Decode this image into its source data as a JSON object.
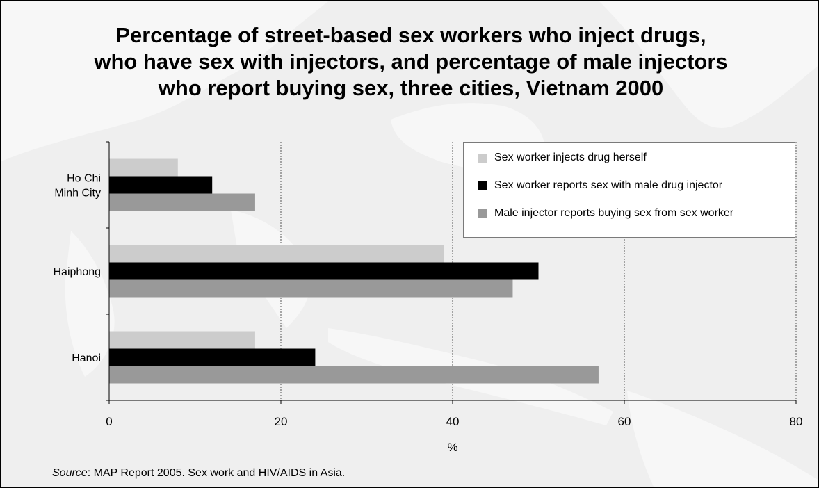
{
  "title_lines": [
    "Percentage of street-based sex workers who inject drugs,",
    "who have sex with injectors, and percentage of male injectors",
    "who report buying sex, three cities, Vietnam 2000"
  ],
  "source": {
    "label": "Source",
    "text": ": MAP Report 2005. Sex work and HIV/AIDS in Asia."
  },
  "chart_data": {
    "type": "bar",
    "orientation": "horizontal",
    "categories": [
      "Ho Chi Minh City",
      "Haiphong",
      "Hanoi"
    ],
    "category_label_lines": [
      [
        "Ho Chi",
        "Minh City"
      ],
      [
        "Haiphong"
      ],
      [
        "Hanoi"
      ]
    ],
    "series": [
      {
        "name": "Sex worker injects drug herself",
        "color": "#cccccc",
        "values": [
          8,
          39,
          17
        ]
      },
      {
        "name": "Sex worker reports sex with male drug injector",
        "color": "#000000",
        "values": [
          12,
          50,
          24
        ]
      },
      {
        "name": "Male injector reports buying sex from sex worker",
        "color": "#999999",
        "values": [
          17,
          47,
          57
        ]
      }
    ],
    "xlabel": "%",
    "ylabel": "",
    "xlim": [
      0,
      80
    ],
    "xticks": [
      0,
      20,
      40,
      60,
      80
    ],
    "grid": "vertical dotted",
    "legend_position": "top-right"
  }
}
